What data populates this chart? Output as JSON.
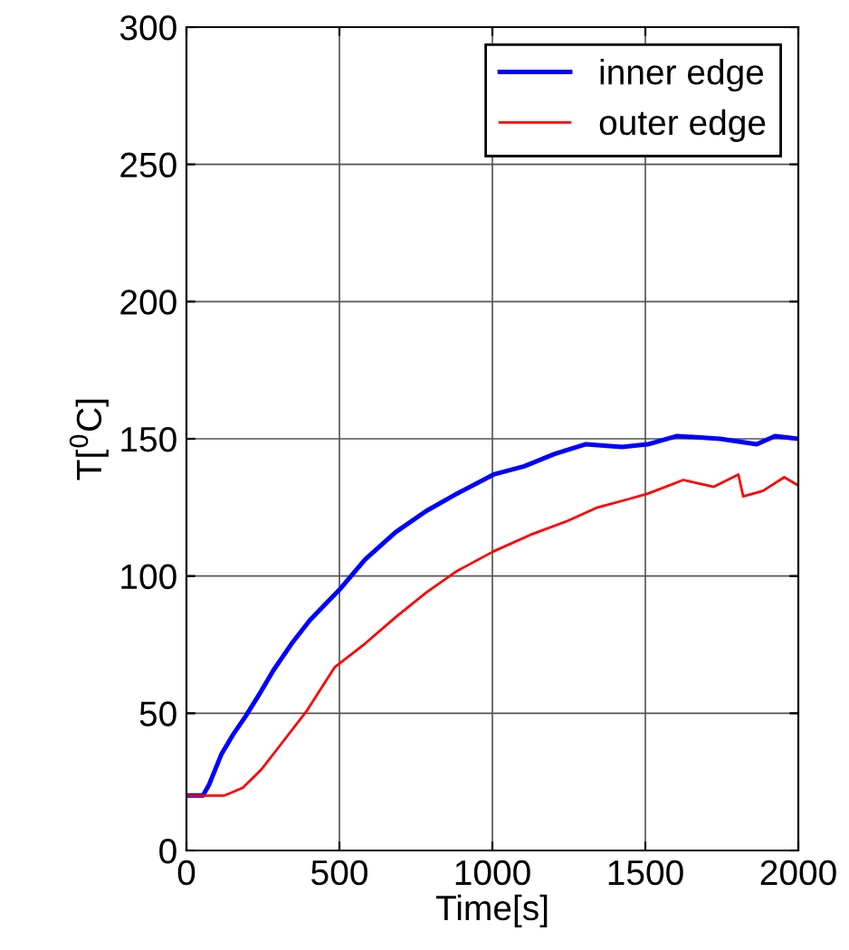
{
  "chart_data": {
    "type": "line",
    "xlabel": "Time[s]",
    "ylabel": "T[$^{0}$C]",
    "xlim": [
      0,
      2000
    ],
    "ylim": [
      0,
      300
    ],
    "xticks": [
      0,
      500,
      1000,
      1500,
      2000
    ],
    "yticks": [
      0,
      50,
      100,
      150,
      200,
      250,
      300
    ],
    "grid": true,
    "legend": "top right",
    "marker": "none",
    "line_style": "solid",
    "series": [
      {
        "name": "inner edge",
        "color": "#0000ff",
        "x": [
          0,
          54,
          74,
          114,
          154,
          194,
          244,
          284,
          344,
          404,
          500,
          584,
          684,
          784,
          884,
          1004,
          1104,
          1204,
          1304,
          1424,
          1508,
          1604,
          1744,
          1864,
          1924,
          2000
        ],
        "values": [
          20,
          20,
          24,
          35,
          42.5,
          49,
          58,
          65.6,
          75.4,
          84,
          95,
          106,
          116,
          123.7,
          130,
          137,
          140,
          144.5,
          148,
          147,
          148,
          151,
          150,
          148,
          151,
          150
        ]
      },
      {
        "name": "outer edge",
        "color": "#ff0000",
        "x": [
          0,
          124,
          184,
          244,
          304,
          394,
          484,
          584,
          684,
          784,
          884,
          1004,
          1124,
          1244,
          1344,
          1444,
          1508,
          1624,
          1724,
          1804,
          1820,
          1884,
          1954,
          2000
        ],
        "values": [
          20,
          20,
          22.8,
          29.4,
          38,
          51,
          66.7,
          75.4,
          85,
          94,
          101.8,
          109,
          115,
          120,
          125,
          128,
          130,
          135,
          132.5,
          137,
          129,
          131,
          136,
          133
        ]
      }
    ]
  }
}
